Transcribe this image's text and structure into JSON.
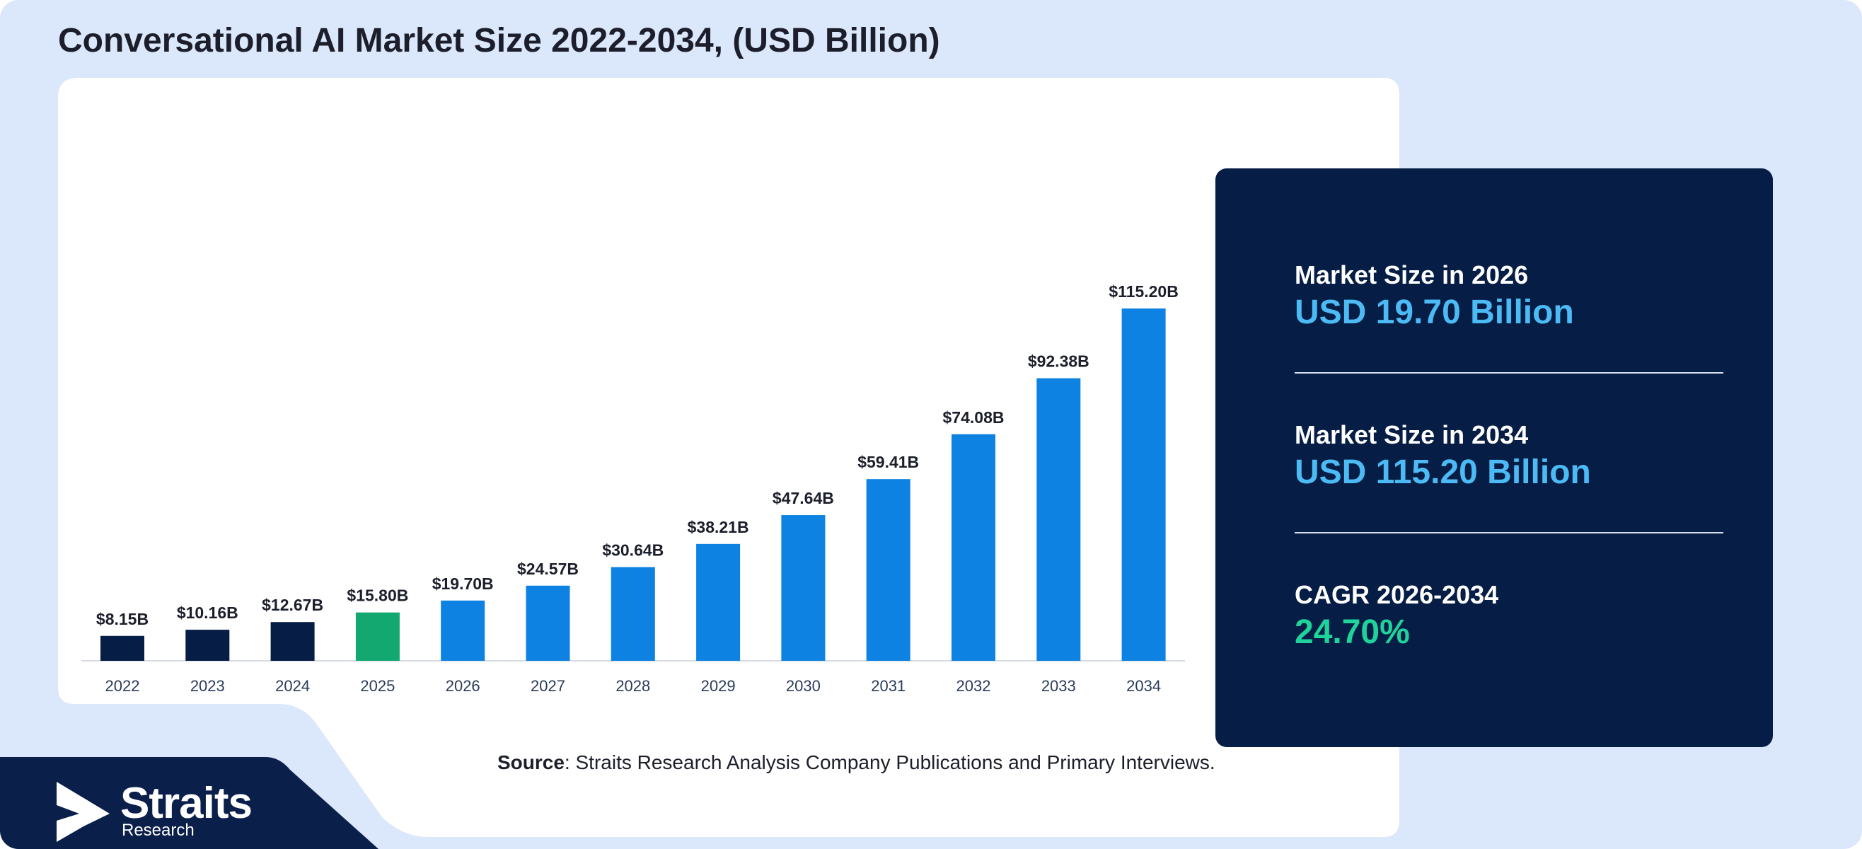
{
  "title": "Conversational AI Market Size 2022-2034, (USD Billion)",
  "source": {
    "label": "Source",
    "text": ": Straits Research Analysis Company Publications and Primary Interviews."
  },
  "stats": {
    "size_2026_label": "Market Size in 2026",
    "size_2026_value": "USD 19.70 Billion",
    "size_2034_label": "Market Size in 2034",
    "size_2034_value": "USD 115.20 Billion",
    "cagr_label": "CAGR 2026-2034",
    "cagr_value": "24.70%"
  },
  "logo": {
    "word": "Straits",
    "sub": "Research"
  },
  "colors": {
    "background": "#dbe7fa",
    "panel_dark": "#061d45",
    "bar_historical": "#061d45",
    "bar_base_year": "#12a870",
    "bar_forecast": "#0d82e3",
    "value_blue": "#4cbaf4",
    "value_green": "#1fd49a"
  },
  "chart_data": {
    "type": "bar",
    "categories": [
      "2022",
      "2023",
      "2024",
      "2025",
      "2026",
      "2027",
      "2028",
      "2029",
      "2030",
      "2031",
      "2032",
      "2033",
      "2034"
    ],
    "values": [
      8.15,
      10.16,
      12.67,
      15.8,
      19.7,
      24.57,
      30.64,
      38.21,
      47.64,
      59.41,
      74.08,
      92.38,
      115.2
    ],
    "data_labels": [
      "$8.15B",
      "$10.16B",
      "$12.67B",
      "$15.80B",
      "$19.70B",
      "$24.57B",
      "$30.64B",
      "$38.21B",
      "$47.64B",
      "$59.41B",
      "$74.08B",
      "$92.38B",
      "$115.20B"
    ],
    "bar_colors": [
      "#061d45",
      "#061d45",
      "#061d45",
      "#12a870",
      "#0d82e3",
      "#0d82e3",
      "#0d82e3",
      "#0d82e3",
      "#0d82e3",
      "#0d82e3",
      "#0d82e3",
      "#0d82e3",
      "#0d82e3"
    ],
    "ylim": [
      0,
      120
    ],
    "grid": false,
    "legend": "none"
  }
}
